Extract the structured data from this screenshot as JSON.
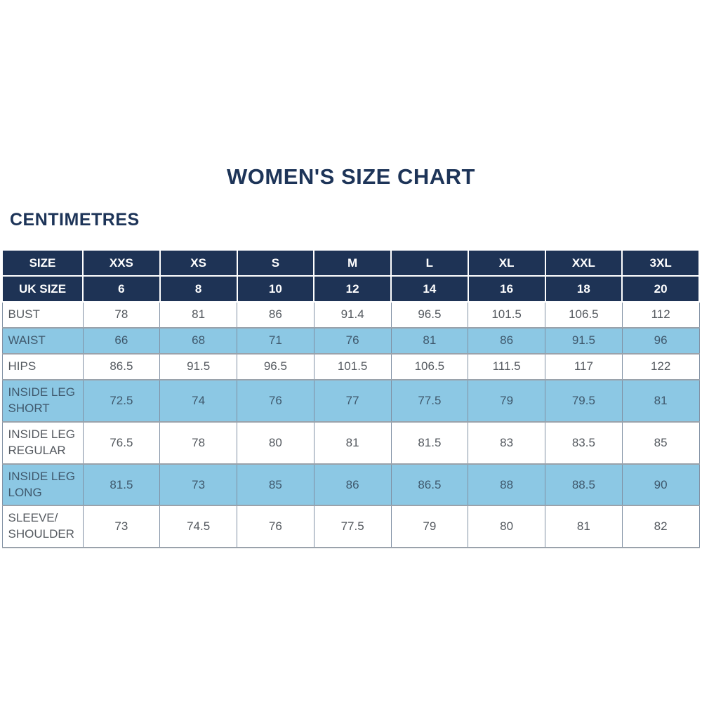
{
  "title": "WOMEN'S SIZE CHART",
  "subtitle": "CENTIMETRES",
  "colors": {
    "navy": "#1e3355",
    "light_blue": "#8cc8e4",
    "title_text": "#1d3458",
    "body_text": "#54595f",
    "shaded_text": "#3f586c"
  },
  "chart_data": {
    "type": "table",
    "title": "WOMEN'S SIZE CHART",
    "units_label": "CENTIMETRES",
    "columns": [
      "SIZE",
      "XXS",
      "XS",
      "S",
      "M",
      "L",
      "XL",
      "XXL",
      "3XL"
    ],
    "uk_size_row": {
      "label": "UK SIZE",
      "values": [
        "6",
        "8",
        "10",
        "12",
        "14",
        "16",
        "18",
        "20"
      ]
    },
    "rows": [
      {
        "label": "BUST",
        "values": [
          "78",
          "81",
          "86",
          "91.4",
          "96.5",
          "101.5",
          "106.5",
          "112"
        ],
        "shaded": false
      },
      {
        "label": "WAIST",
        "values": [
          "66",
          "68",
          "71",
          "76",
          "81",
          "86",
          "91.5",
          "96"
        ],
        "shaded": true
      },
      {
        "label": "HIPS",
        "values": [
          "86.5",
          "91.5",
          "96.5",
          "101.5",
          "106.5",
          "111.5",
          "117",
          "122"
        ],
        "shaded": false
      },
      {
        "label": "INSIDE LEG SHORT",
        "values": [
          "72.5",
          "74",
          "76",
          "77",
          "77.5",
          "79",
          "79.5",
          "81"
        ],
        "shaded": true
      },
      {
        "label": "INSIDE LEG REGULAR",
        "values": [
          "76.5",
          "78",
          "80",
          "81",
          "81.5",
          "83",
          "83.5",
          "85"
        ],
        "shaded": false
      },
      {
        "label": "INSIDE LEG LONG",
        "values": [
          "81.5",
          "73",
          "85",
          "86",
          "86.5",
          "88",
          "88.5",
          "90"
        ],
        "shaded": true
      },
      {
        "label": "SLEEVE/ SHOULDER",
        "values": [
          "73",
          "74.5",
          "76",
          "77.5",
          "79",
          "80",
          "81",
          "82"
        ],
        "shaded": false
      }
    ]
  }
}
